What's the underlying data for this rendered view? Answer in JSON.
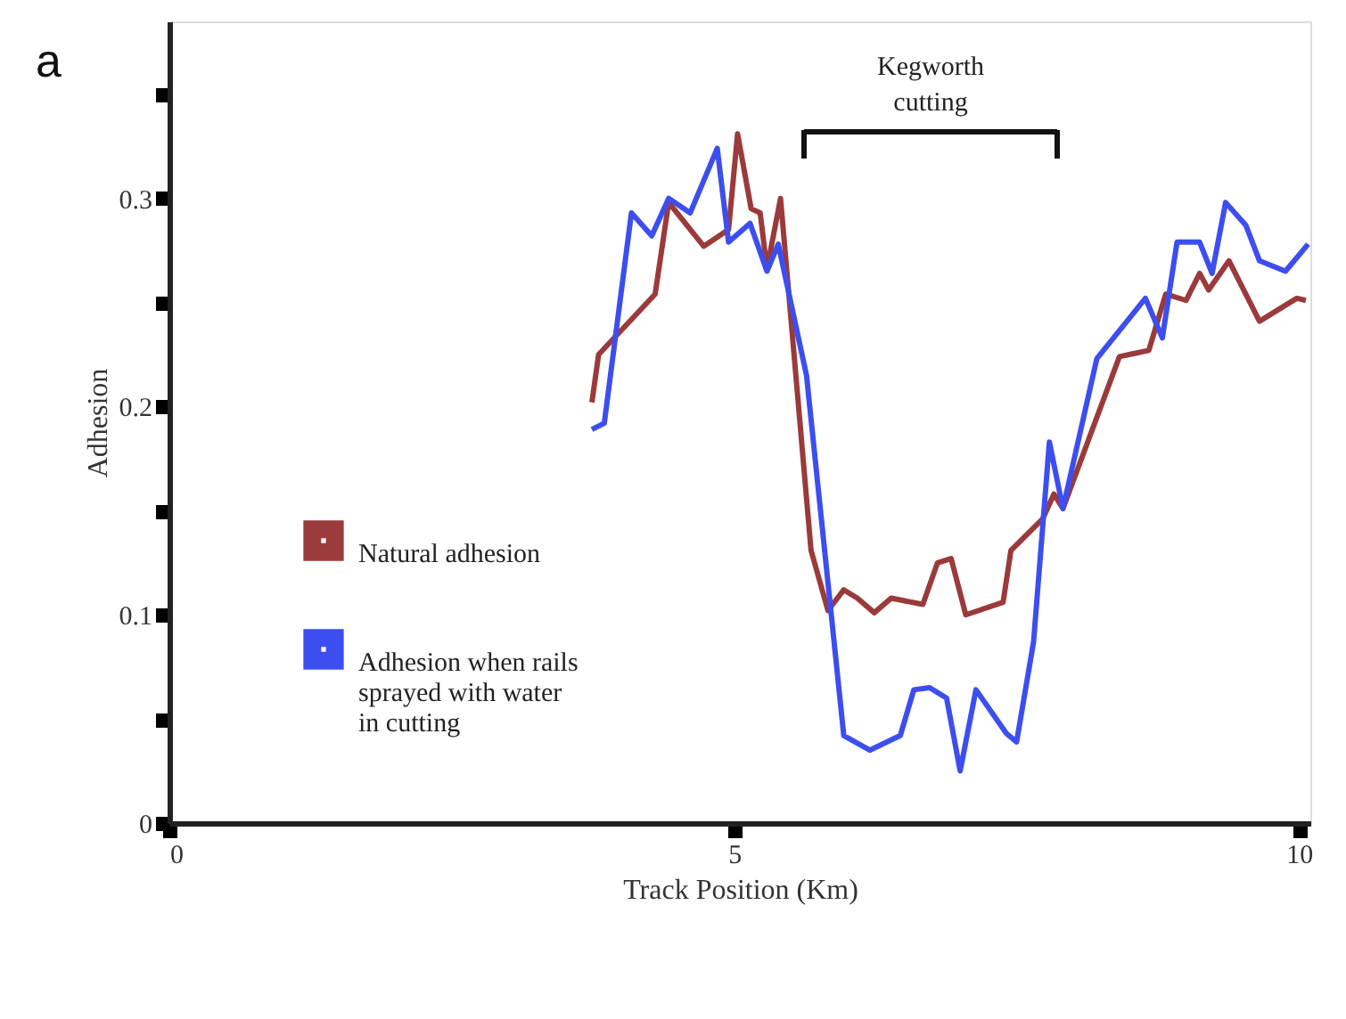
{
  "chart_data": {
    "type": "line",
    "xlabel": "Track Position (Km)",
    "ylabel": "Adhesion",
    "xlim": [
      0,
      10.1
    ],
    "ylim": [
      0,
      0.385
    ],
    "xticks": [
      0,
      5,
      10
    ],
    "yticks": [
      0,
      {
        "value": 0.05,
        "label": null
      },
      0.1,
      {
        "value": 0.15,
        "label": null
      },
      0.2,
      {
        "value": 0.25,
        "label": null
      },
      0.3,
      {
        "value": 0.35,
        "label": null
      }
    ],
    "grid": false,
    "legend": "bottom left",
    "marker": "none",
    "line_style": "solid",
    "annotations": [
      "a",
      "Kegworth cutting"
    ],
    "series": [
      {
        "name": "Natural adhesion",
        "color": "#9b3a3a",
        "x": [
          3.74,
          3.8,
          4.3,
          4.42,
          4.73,
          4.95,
          5.03,
          5.15,
          5.23,
          5.29,
          5.41,
          5.68,
          5.83,
          5.97,
          6.09,
          6.24,
          6.39,
          6.67,
          6.8,
          6.92,
          7.05,
          7.38,
          7.45,
          7.73,
          7.83,
          7.91,
          8.41,
          8.67,
          8.82,
          9.0,
          9.12,
          9.2,
          9.38,
          9.65,
          9.98,
          10.06
        ],
        "values": [
          0.202,
          0.225,
          0.254,
          0.298,
          0.277,
          0.285,
          0.331,
          0.295,
          0.293,
          0.266,
          0.3,
          0.131,
          0.102,
          0.112,
          0.108,
          0.101,
          0.108,
          0.105,
          0.125,
          0.127,
          0.1,
          0.106,
          0.131,
          0.146,
          0.158,
          0.151,
          0.224,
          0.227,
          0.254,
          0.251,
          0.264,
          0.256,
          0.27,
          0.241,
          0.252,
          0.251
        ]
      },
      {
        "name": "Adhesion when rails sprayed with water in cutting",
        "color": "#3d4ef0",
        "x": [
          3.74,
          3.85,
          4.09,
          4.27,
          4.42,
          4.61,
          4.85,
          4.95,
          5.14,
          5.29,
          5.39,
          5.64,
          5.97,
          6.2,
          6.47,
          6.59,
          6.73,
          6.88,
          7.0,
          7.14,
          7.41,
          7.5,
          7.65,
          7.79,
          7.91,
          8.21,
          8.64,
          8.79,
          8.92,
          9.12,
          9.23,
          9.35,
          9.53,
          9.65,
          9.88,
          10.08
        ],
        "values": [
          0.189,
          0.192,
          0.293,
          0.282,
          0.3,
          0.293,
          0.324,
          0.279,
          0.288,
          0.265,
          0.278,
          0.215,
          0.042,
          0.035,
          0.042,
          0.064,
          0.065,
          0.06,
          0.025,
          0.064,
          0.043,
          0.039,
          0.087,
          0.183,
          0.151,
          0.223,
          0.252,
          0.233,
          0.279,
          0.279,
          0.264,
          0.298,
          0.287,
          0.27,
          0.265,
          0.278
        ]
      }
    ]
  }
}
